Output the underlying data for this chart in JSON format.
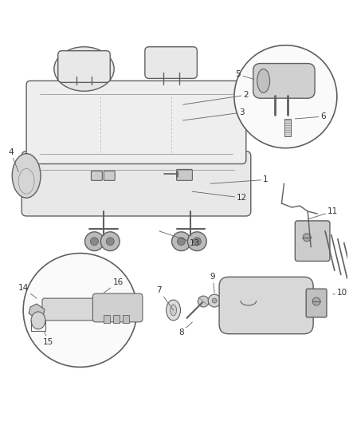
{
  "bg_color": "#ffffff",
  "lc": "#606060",
  "lc2": "#888888",
  "fc_seat": "#e8e8e8",
  "fc_light": "#d8d8d8",
  "fc_mid": "#c8c8c8",
  "fc_dark": "#b0b0b0",
  "label_color": "#333333",
  "figsize": [
    4.38,
    5.33
  ],
  "dpi": 100
}
